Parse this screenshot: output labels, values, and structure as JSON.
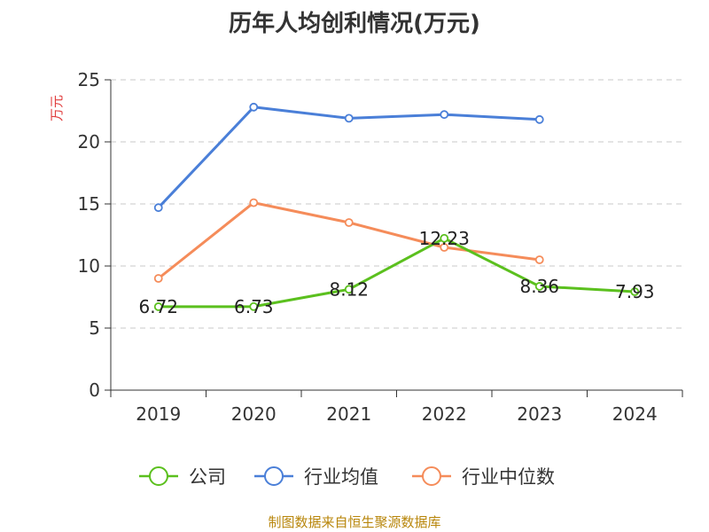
{
  "chart_data": {
    "type": "line",
    "title": "历年人均创利情况(万元)",
    "ylabel": "万元",
    "xlabel": "",
    "categories": [
      "2019",
      "2020",
      "2021",
      "2022",
      "2023",
      "2024"
    ],
    "ylim": [
      0,
      25
    ],
    "yticks": [
      0,
      5,
      10,
      15,
      20,
      25
    ],
    "grid": true,
    "legend_position": "bottom",
    "series": [
      {
        "name": "公司",
        "color": "#5bc01e",
        "values": [
          6.72,
          6.73,
          8.12,
          12.23,
          8.36,
          7.93
        ],
        "labels": [
          "6.72",
          "6.73",
          "8.12",
          "12.23",
          "8.36",
          "7.93"
        ]
      },
      {
        "name": "行业均值",
        "color": "#4a7fd8",
        "values": [
          14.7,
          22.8,
          21.9,
          22.2,
          21.8,
          null
        ]
      },
      {
        "name": "行业中位数",
        "color": "#f58c5a",
        "values": [
          9.0,
          15.1,
          13.5,
          11.5,
          10.5,
          null
        ]
      }
    ]
  },
  "source_text": "制图数据来自恒生聚源数据库"
}
